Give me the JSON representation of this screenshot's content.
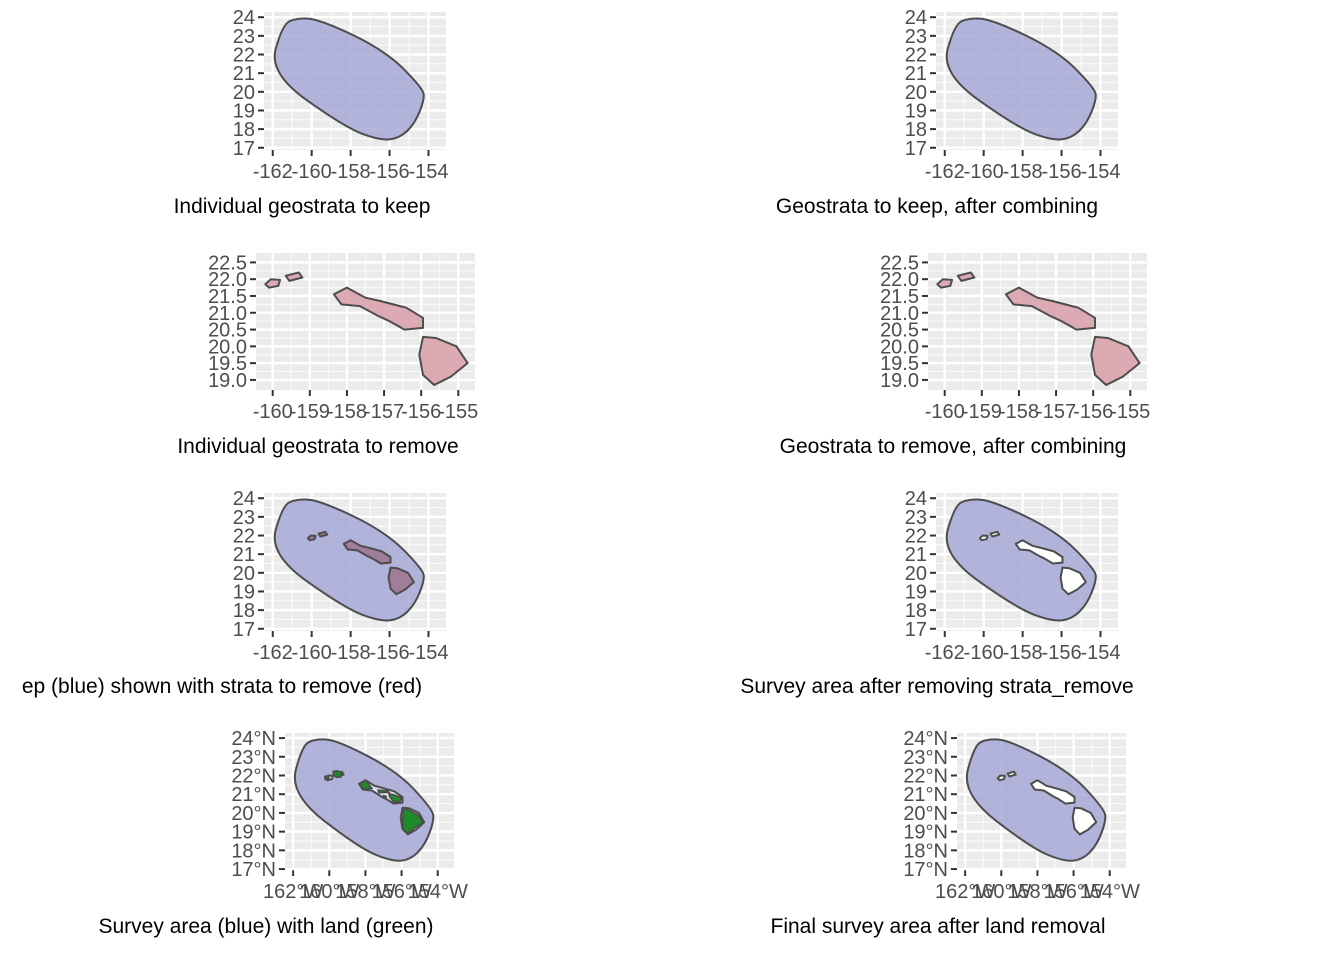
{
  "chart_data": [
    {
      "type": "map",
      "title": "Individual geostrata to keep",
      "x_ticks": [
        -162,
        -160,
        -158,
        -156,
        -154
      ],
      "x_labels": [
        "-162",
        "-160",
        "-158",
        "-156",
        "-154"
      ],
      "y_ticks": [
        17,
        18,
        19,
        20,
        21,
        22,
        23,
        24
      ],
      "y_labels": [
        "17",
        "18",
        "19",
        "20",
        "21",
        "22",
        "23",
        "24"
      ],
      "layers": [
        "keep_area"
      ]
    },
    {
      "type": "map",
      "title": "Geostrata to keep, after combining",
      "x_ticks": [
        -162,
        -160,
        -158,
        -156,
        -154
      ],
      "x_labels": [
        "-162",
        "-160",
        "-158",
        "-156",
        "-154"
      ],
      "y_ticks": [
        17,
        18,
        19,
        20,
        21,
        22,
        23,
        24
      ],
      "y_labels": [
        "17",
        "18",
        "19",
        "20",
        "21",
        "22",
        "23",
        "24"
      ],
      "layers": [
        "keep_area"
      ]
    },
    {
      "type": "map",
      "title": "Individual geostrata to remove",
      "x_ticks": [
        -160,
        -159,
        -158,
        -157,
        -156,
        -155
      ],
      "x_labels": [
        "-160",
        "-159",
        "-158",
        "-157",
        "-156",
        "-155"
      ],
      "y_ticks": [
        19.0,
        19.5,
        20.0,
        20.5,
        21.0,
        21.5,
        22.0,
        22.5
      ],
      "y_labels": [
        "19.0",
        "19.5",
        "20.0",
        "20.5",
        "21.0",
        "21.5",
        "22.0",
        "22.5"
      ],
      "layers": [
        "remove_islands"
      ]
    },
    {
      "type": "map",
      "title": "Geostrata to remove, after combining",
      "x_ticks": [
        -160,
        -159,
        -158,
        -157,
        -156,
        -155
      ],
      "x_labels": [
        "-160",
        "-159",
        "-158",
        "-157",
        "-156",
        "-155"
      ],
      "y_ticks": [
        19.0,
        19.5,
        20.0,
        20.5,
        21.0,
        21.5,
        22.0,
        22.5
      ],
      "y_labels": [
        "19.0",
        "19.5",
        "20.0",
        "20.5",
        "21.0",
        "21.5",
        "22.0",
        "22.5"
      ],
      "layers": [
        "remove_islands"
      ]
    },
    {
      "type": "map",
      "title": "ep (blue) shown with strata to remove (red)",
      "x_ticks": [
        -162,
        -160,
        -158,
        -156,
        -154
      ],
      "x_labels": [
        "-162",
        "-160",
        "-158",
        "-156",
        "-154"
      ],
      "y_ticks": [
        17,
        18,
        19,
        20,
        21,
        22,
        23,
        24
      ],
      "y_labels": [
        "17",
        "18",
        "19",
        "20",
        "21",
        "22",
        "23",
        "24"
      ],
      "layers": [
        "keep_area",
        "remove_islands_overlay"
      ]
    },
    {
      "type": "map",
      "title": "Survey area after removing strata_remove",
      "x_ticks": [
        -162,
        -160,
        -158,
        -156,
        -154
      ],
      "x_labels": [
        "-162",
        "-160",
        "-158",
        "-156",
        "-154"
      ],
      "y_ticks": [
        17,
        18,
        19,
        20,
        21,
        22,
        23,
        24
      ],
      "y_labels": [
        "17",
        "18",
        "19",
        "20",
        "21",
        "22",
        "23",
        "24"
      ],
      "layers": [
        "keep_area",
        "holes"
      ]
    },
    {
      "type": "map",
      "title": "Survey area (blue) with land (green)",
      "x_ticks": [
        -162,
        -160,
        -158,
        -156,
        -154
      ],
      "x_labels": [
        "162°W",
        "160°W",
        "158°W",
        "156°W",
        "154°W"
      ],
      "y_ticks": [
        17,
        18,
        19,
        20,
        21,
        22,
        23,
        24
      ],
      "y_labels": [
        "17°N",
        "18°N",
        "19°N",
        "20°N",
        "21°N",
        "22°N",
        "23°N",
        "24°N"
      ],
      "layers": [
        "keep_area",
        "islands_outline",
        "land"
      ]
    },
    {
      "type": "map",
      "title": "Final survey area after land removal",
      "x_ticks": [
        -162,
        -160,
        -158,
        -156,
        -154
      ],
      "x_labels": [
        "162°W",
        "160°W",
        "158°W",
        "156°W",
        "154°W"
      ],
      "y_ticks": [
        17,
        18,
        19,
        20,
        21,
        22,
        23,
        24
      ],
      "y_labels": [
        "17°N",
        "18°N",
        "19°N",
        "20°N",
        "21°N",
        "22°N",
        "23°N",
        "24°N"
      ],
      "layers": [
        "keep_area",
        "land_holes"
      ]
    }
  ],
  "colors": {
    "panel_bg": "#ebebeb",
    "grid": "#ffffff",
    "keep_fill": "#a6a8d6",
    "remove_fill": "#dcaab2",
    "overlay_fill": "#a07d9a",
    "land_fill": "#1e8a2a",
    "outline": "#4d4d4d"
  }
}
